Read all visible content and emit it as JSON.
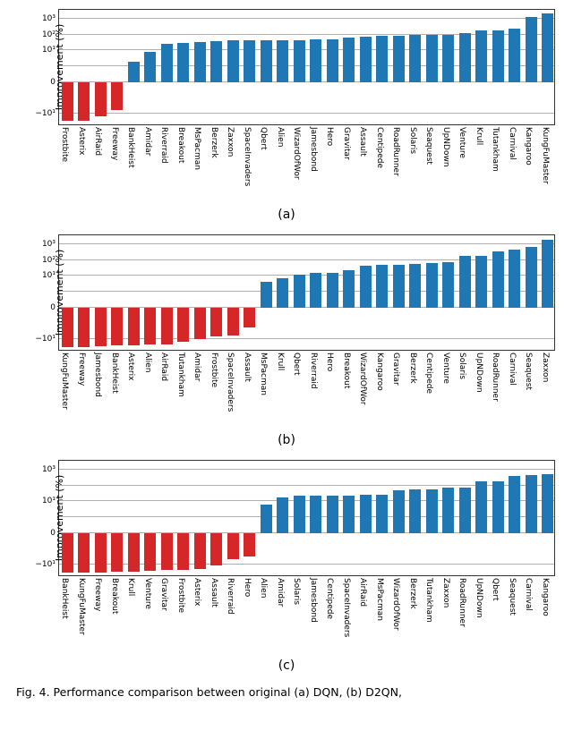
{
  "subplots": [
    {
      "caption": "(a)",
      "ylabel": "Improvement (%)",
      "ylabel_fontsize": 11,
      "xtick_fontsize": 9,
      "pos_color": "#1f77b4",
      "neg_color": "#d62728",
      "bg_color": "#ffffff",
      "grid_color": "#b0b0b0",
      "symlog_linthresh": 1,
      "ylim_top": 5000,
      "ylim_bot": -50,
      "yticks_pos": [
        1,
        10,
        100,
        1000
      ],
      "yticks_neg": [
        -10
      ],
      "ytick_labels_pos": [
        "",
        "10¹",
        "10²",
        "10³"
      ],
      "ytick_labels_neg": [
        "−10¹"
      ],
      "bar_width": 0.72,
      "categories": [
        "Frostbite",
        "Asterix",
        "AirRaid",
        "Freeway",
        "BankHeist",
        "Amidar",
        "Riverraid",
        "Breakout",
        "MsPacman",
        "Berzerk",
        "Zaxxon",
        "SpaceInvaders",
        "Qbert",
        "Alien",
        "WizardOfWor",
        "Jamesbond",
        "Hero",
        "Gravitar",
        "Assault",
        "Centipede",
        "RoadRunner",
        "Solaris",
        "Seaquest",
        "UpNDown",
        "Venture",
        "Krull",
        "Tutankham",
        "Carnival",
        "Kangaroo",
        "KungFuMaster"
      ],
      "values": [
        -28,
        -28,
        -15,
        -6,
        2,
        8,
        25,
        32,
        35,
        40,
        42,
        43,
        45,
        45,
        46,
        48,
        48,
        70,
        72,
        90,
        92,
        93,
        95,
        100,
        120,
        180,
        200,
        260,
        1400,
        2200
      ]
    },
    {
      "caption": "(b)",
      "ylabel": "Improvement (%)",
      "ylabel_fontsize": 11,
      "xtick_fontsize": 9,
      "pos_color": "#1f77b4",
      "neg_color": "#d62728",
      "bg_color": "#ffffff",
      "grid_color": "#b0b0b0",
      "symlog_linthresh": 1,
      "ylim_top": 5000,
      "ylim_bot": -50,
      "yticks_pos": [
        1,
        10,
        100,
        1000
      ],
      "yticks_neg": [
        -10
      ],
      "ytick_labels_pos": [
        "",
        "10¹",
        "10²",
        "10³"
      ],
      "ytick_labels_neg": [
        "−10¹"
      ],
      "bar_width": 0.72,
      "categories": [
        "KungFuMaster",
        "Freeway",
        "Jamesbond",
        "BankHeist",
        "Asterix",
        "Alien",
        "AirRaid",
        "Tutankham",
        "Amidar",
        "Frostbite",
        "SpaceInvaders",
        "Assault",
        "MsPacman",
        "Krull",
        "Qbert",
        "Riverraid",
        "Hero",
        "Breakout",
        "WizardOfWor",
        "Kangaroo",
        "Gravitar",
        "Berzerk",
        "Centipede",
        "Venture",
        "Solaris",
        "UpNDown",
        "RoadRunner",
        "Carnival",
        "Seaquest",
        "Zaxxon"
      ],
      "values": [
        -35,
        -33,
        -30,
        -27,
        -25,
        -24,
        -22,
        -15,
        -10,
        -7,
        -6,
        -2,
        4,
        7,
        12,
        15,
        16,
        22,
        45,
        48,
        50,
        55,
        70,
        80,
        180,
        200,
        350,
        450,
        700,
        2000
      ]
    },
    {
      "caption": "(c)",
      "ylabel": "Improvement (%)",
      "ylabel_fontsize": 11,
      "xtick_fontsize": 9,
      "pos_color": "#1f77b4",
      "neg_color": "#d62728",
      "bg_color": "#ffffff",
      "grid_color": "#b0b0b0",
      "symlog_linthresh": 1,
      "ylim_top": 5000,
      "ylim_bot": -50,
      "yticks_pos": [
        1,
        10,
        100,
        1000
      ],
      "yticks_neg": [
        -10
      ],
      "ytick_labels_pos": [
        "",
        "10¹",
        "",
        "10³"
      ],
      "ytick_labels_neg": [
        "−10¹"
      ],
      "bar_width": 0.72,
      "categories": [
        "BankHeist",
        "KungFuMaster",
        "Freeway",
        "Breakout",
        "Krull",
        "Venture",
        "Gravitar",
        "Frostbite",
        "Asterix",
        "Assault",
        "Riverraid",
        "Hero",
        "Alien",
        "Amidar",
        "Solaris",
        "Jamesbond",
        "Centipede",
        "SpaceInvaders",
        "AirRaid",
        "MsPacman",
        "WizardOfWor",
        "Berzerk",
        "Tutankham",
        "Zaxxon",
        "RoadRunner",
        "UpNDown",
        "Qbert",
        "Seaquest",
        "Carnival",
        "Kangaroo"
      ],
      "values": [
        -35,
        -34,
        -32,
        -30,
        -28,
        -25,
        -23,
        -22,
        -20,
        -12,
        -5,
        -3,
        6,
        18,
        22,
        23,
        24,
        24,
        25,
        28,
        50,
        55,
        60,
        75,
        80,
        180,
        200,
        420,
        480,
        550
      ]
    }
  ],
  "figure_caption": "Fig. 4.   Performance comparison between original (a) DQN, (b) D2QN,",
  "text_color": "#000000"
}
